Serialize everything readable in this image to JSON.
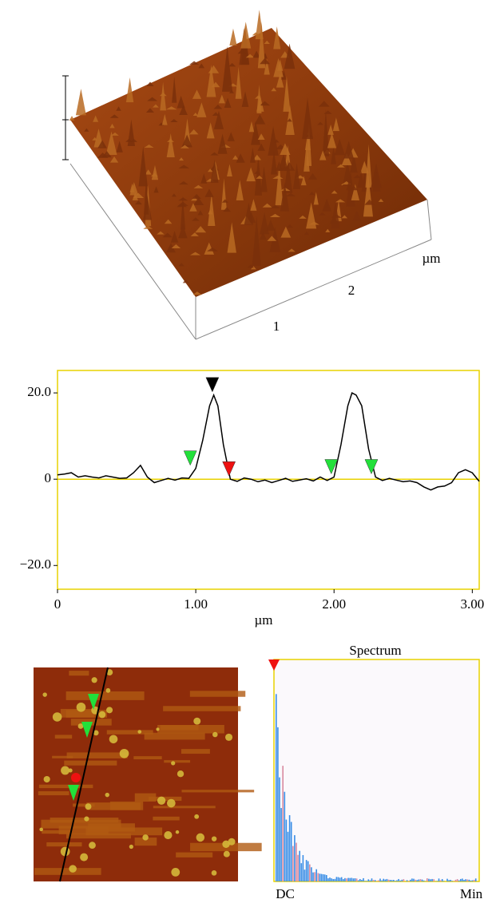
{
  "surface_3d": {
    "tick_labels": [
      "1",
      "2"
    ],
    "unit": "µm"
  },
  "chart_data": {
    "type": "line",
    "color": "#000000",
    "x": [
      0,
      0.05,
      0.1,
      0.15,
      0.2,
      0.25,
      0.3,
      0.35,
      0.4,
      0.45,
      0.5,
      0.55,
      0.6,
      0.65,
      0.7,
      0.75,
      0.8,
      0.85,
      0.9,
      0.95,
      1.0,
      1.05,
      1.1,
      1.13,
      1.16,
      1.2,
      1.25,
      1.3,
      1.35,
      1.4,
      1.45,
      1.5,
      1.55,
      1.6,
      1.65,
      1.7,
      1.75,
      1.8,
      1.85,
      1.9,
      1.95,
      2.0,
      2.05,
      2.1,
      2.13,
      2.16,
      2.2,
      2.25,
      2.3,
      2.35,
      2.4,
      2.45,
      2.5,
      2.55,
      2.6,
      2.65,
      2.7,
      2.75,
      2.8,
      2.85,
      2.9,
      2.95,
      3.0,
      3.05
    ],
    "values": [
      1,
      1.2,
      1.5,
      0.5,
      0.8,
      0.5,
      0.3,
      0.8,
      0.5,
      0.2,
      0.3,
      1.5,
      3.2,
      0.5,
      -0.8,
      -0.3,
      0.2,
      -0.2,
      0.3,
      0.2,
      2.5,
      9,
      17,
      19.5,
      17,
      8,
      0,
      -0.5,
      0.3,
      0,
      -0.6,
      -0.2,
      -0.8,
      -0.3,
      0.2,
      -0.5,
      -0.2,
      0.1,
      -0.4,
      0.5,
      -0.3,
      0.5,
      8,
      17,
      20,
      19.5,
      17,
      7,
      0.5,
      -0.3,
      0.2,
      -0.2,
      -0.6,
      -0.4,
      -0.8,
      -1.8,
      -2.5,
      -1.8,
      -1.6,
      -0.8,
      1.5,
      2.2,
      1.5,
      -0.5
    ],
    "reference_line": 0,
    "reference_color": "#e8d200",
    "frame_color": "#e8d200",
    "markers": [
      {
        "x": 0.96,
        "color": "#22e03a"
      },
      {
        "x": 1.12,
        "color": "#000000"
      },
      {
        "x": 1.24,
        "color": "#ee1111"
      },
      {
        "x": 1.98,
        "color": "#22e03a"
      },
      {
        "x": 2.27,
        "color": "#22e03a"
      }
    ],
    "xlim": [
      0,
      3.05
    ],
    "ylim": [
      -25.5,
      25.2
    ],
    "xticks": [
      0,
      {
        "value": 1,
        "label": "1.00"
      },
      {
        "value": 2,
        "label": "2.00"
      },
      {
        "value": 3,
        "label": "3.00"
      }
    ],
    "yticks": [
      {
        "value": 20,
        "label": "20.0"
      },
      0,
      {
        "value": -20,
        "label": "−20.0"
      }
    ],
    "x_label": "µm"
  },
  "spectrum": {
    "title": "Spectrum",
    "start_label": "DC",
    "end_label": "Min"
  }
}
